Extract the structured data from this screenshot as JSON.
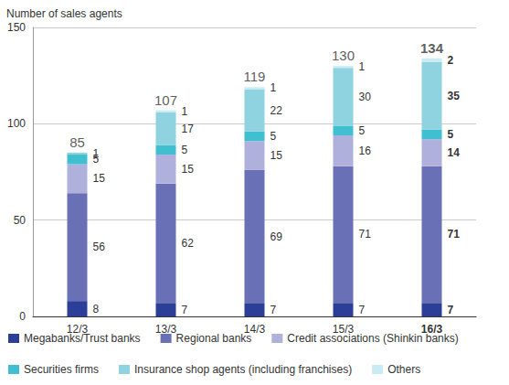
{
  "chart_data": {
    "type": "bar",
    "stacked": true,
    "data_labels": true,
    "grid": true,
    "legend": "bottom",
    "y_label": "Number of sales agents",
    "categories": [
      "12/3",
      "13/3",
      "14/3",
      "15/3",
      "16/3"
    ],
    "series": [
      {
        "name": "Megabanks/Trust banks",
        "color": "#2b3f98",
        "values": [
          8,
          7,
          7,
          7,
          7
        ]
      },
      {
        "name": "Regional banks",
        "color": "#6a70b6",
        "values": [
          56,
          62,
          69,
          71,
          71
        ]
      },
      {
        "name": "Credit associations (Shinkin banks)",
        "color": "#afb0db",
        "values": [
          15,
          15,
          15,
          16,
          14
        ]
      },
      {
        "name": "Securities firms",
        "color": "#3fbfcf",
        "values": [
          5,
          5,
          5,
          5,
          5
        ]
      },
      {
        "name": "Insurance shop agents (including franchises)",
        "color": "#8ed3df",
        "values": [
          1,
          17,
          22,
          30,
          35
        ]
      },
      {
        "name": "Others",
        "color": "#c9ebf1",
        "values": [
          null,
          1,
          1,
          1,
          2
        ]
      }
    ],
    "totals": [
      85,
      107,
      119,
      130,
      134
    ],
    "ylim": [
      0,
      150
    ],
    "yticks": [
      0,
      50,
      100,
      150
    ]
  }
}
